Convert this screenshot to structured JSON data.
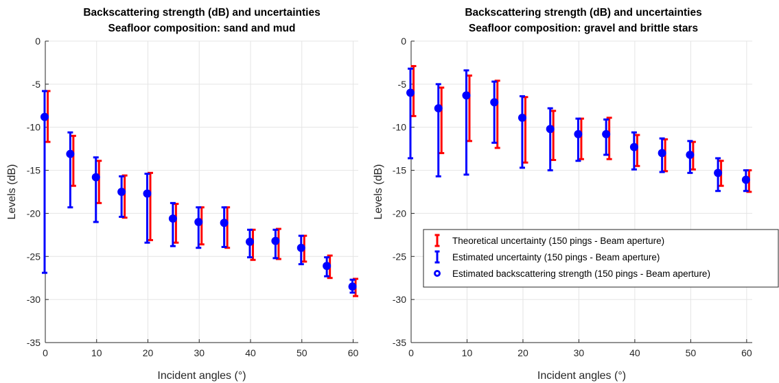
{
  "chart_data": [
    {
      "type": "errorbar",
      "title": [
        "Backscattering strength (dB) and uncertainties",
        "Seafloor composition: sand and mud"
      ],
      "xlabel": "Incident angles (°)",
      "ylabel": "Levels (dB)",
      "xlim": [
        0,
        61
      ],
      "ylim": [
        -35,
        0
      ],
      "xticks": [
        0,
        10,
        20,
        30,
        40,
        50,
        60
      ],
      "yticks": [
        0,
        -5,
        -10,
        -15,
        -20,
        -25,
        -30,
        -35
      ],
      "grid": true,
      "legend": null,
      "x": [
        0,
        5,
        10,
        15,
        20,
        25,
        30,
        35,
        40,
        45,
        50,
        55,
        60
      ],
      "series": [
        {
          "name": "Theoretical uncertainty (150 pings - Beam aperture)",
          "color": "#ff0000",
          "kind": "errorbar",
          "low": [
            -11.7,
            -16.8,
            -18.8,
            -20.5,
            -23.1,
            -23.4,
            -23.6,
            -24.0,
            -25.4,
            -25.3,
            -25.6,
            -27.5,
            -29.6
          ],
          "high": [
            -5.8,
            -11.0,
            -13.9,
            -15.6,
            -15.3,
            -18.9,
            -19.3,
            -19.3,
            -21.9,
            -21.8,
            -22.6,
            -24.9,
            -27.6
          ]
        },
        {
          "name": "Estimated uncertainty (150 pings - Beam aperture)",
          "color": "#0000ff",
          "kind": "errorbar",
          "low": [
            -26.9,
            -19.3,
            -21.0,
            -20.4,
            -23.4,
            -23.8,
            -24.0,
            -23.9,
            -25.1,
            -25.2,
            -25.9,
            -27.3,
            -29.2
          ],
          "high": [
            -5.8,
            -10.6,
            -13.5,
            -15.7,
            -15.4,
            -18.8,
            -19.3,
            -19.3,
            -21.9,
            -21.9,
            -22.6,
            -25.1,
            -27.7
          ]
        },
        {
          "name": "Estimated backscattering strength (150 pings - Beam aperture)",
          "color": "#0000ff",
          "kind": "marker",
          "values": [
            -8.8,
            -13.1,
            -15.8,
            -17.5,
            -17.7,
            -20.6,
            -21.0,
            -21.1,
            -23.3,
            -23.2,
            -24.0,
            -26.1,
            -28.5
          ]
        }
      ]
    },
    {
      "type": "errorbar",
      "title": [
        "Backscattering strength (dB) and uncertainties",
        "Seafloor composition: gravel and brittle stars"
      ],
      "xlabel": "Incident angles (°)",
      "ylabel": "Levels (dB)",
      "xlim": [
        0,
        61
      ],
      "ylim": [
        -35,
        0
      ],
      "xticks": [
        0,
        10,
        20,
        30,
        40,
        50,
        60
      ],
      "yticks": [
        0,
        -5,
        -10,
        -15,
        -20,
        -25,
        -30,
        -35
      ],
      "grid": true,
      "legend": "middle-right",
      "x": [
        0,
        5,
        10,
        15,
        20,
        25,
        30,
        35,
        40,
        45,
        50,
        55,
        60
      ],
      "series": [
        {
          "name": "Theoretical uncertainty (150 pings - Beam aperture)",
          "color": "#ff0000",
          "kind": "errorbar",
          "low": [
            -8.7,
            -13.0,
            -11.6,
            -12.4,
            -14.1,
            -13.8,
            -13.7,
            -13.7,
            -14.5,
            -15.1,
            -14.9,
            -16.8,
            -17.5
          ],
          "high": [
            -2.9,
            -5.4,
            -4.0,
            -4.6,
            -6.5,
            -8.1,
            -9.0,
            -8.9,
            -10.9,
            -11.4,
            -11.7,
            -13.9,
            -15.0
          ]
        },
        {
          "name": "Estimated uncertainty (150 pings - Beam aperture)",
          "color": "#0000ff",
          "kind": "errorbar",
          "low": [
            -13.6,
            -15.7,
            -15.5,
            -11.8,
            -14.7,
            -15.0,
            -13.9,
            -13.2,
            -14.9,
            -15.2,
            -15.3,
            -17.4,
            -17.4
          ],
          "high": [
            -3.2,
            -5.0,
            -3.4,
            -4.7,
            -6.4,
            -7.8,
            -9.0,
            -9.1,
            -10.6,
            -11.3,
            -11.6,
            -13.6,
            -15.0
          ]
        },
        {
          "name": "Estimated backscattering strength (150 pings - Beam aperture)",
          "color": "#0000ff",
          "kind": "marker",
          "values": [
            -6.0,
            -7.8,
            -6.3,
            -7.1,
            -8.9,
            -10.2,
            -10.8,
            -10.8,
            -12.3,
            -13.0,
            -13.2,
            -15.3,
            -16.1
          ]
        }
      ]
    }
  ]
}
